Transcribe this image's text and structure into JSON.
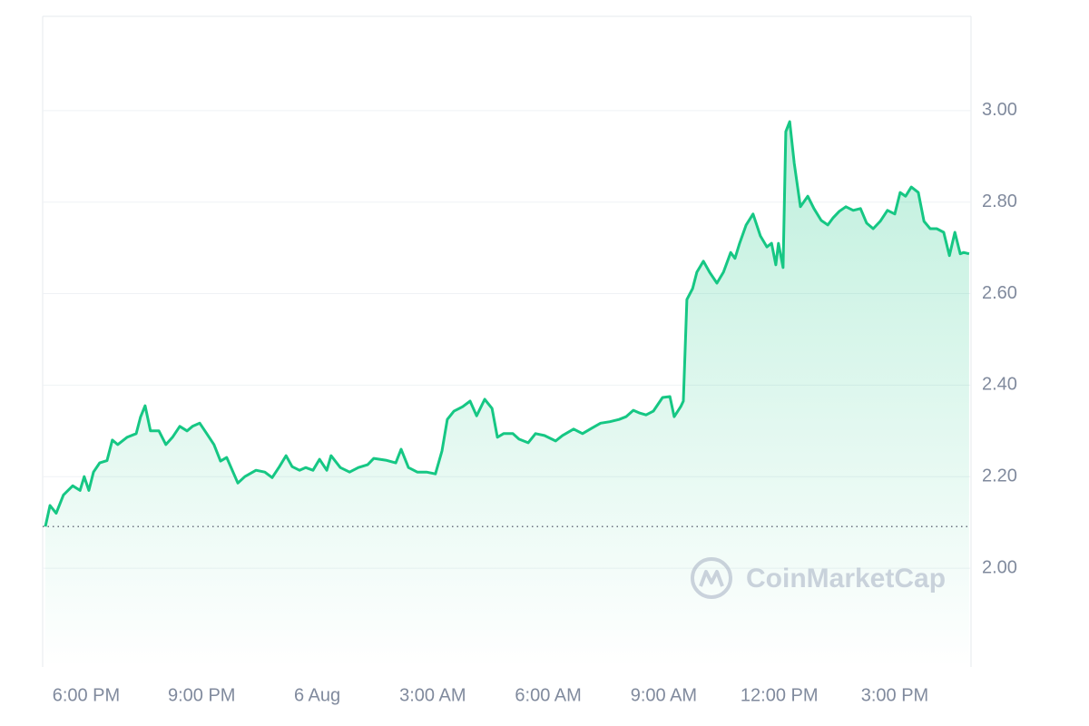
{
  "chart_data": {
    "type": "line",
    "color": "#16c784",
    "grid": true,
    "reference_line": 2.091,
    "watermark": "CoinMarketCap",
    "xlim": [
      16.87,
      40.98
    ],
    "ylim": [
      1.784,
      3.206
    ],
    "xticks": [
      {
        "value": 18,
        "label": "6:00 PM"
      },
      {
        "value": 21,
        "label": "9:00 PM"
      },
      {
        "value": 24,
        "label": "6 Aug"
      },
      {
        "value": 27,
        "label": "3:00 AM"
      },
      {
        "value": 30,
        "label": "6:00 AM"
      },
      {
        "value": 33,
        "label": "9:00 AM"
      },
      {
        "value": 36,
        "label": "12:00 PM"
      },
      {
        "value": 39,
        "label": "3:00 PM"
      }
    ],
    "yticks": [
      {
        "value": 2.0,
        "label": "2.00"
      },
      {
        "value": 2.2,
        "label": "2.20"
      },
      {
        "value": 2.4,
        "label": "2.40"
      },
      {
        "value": 2.6,
        "label": "2.60"
      },
      {
        "value": 2.8,
        "label": "2.80"
      },
      {
        "value": 3.0,
        "label": "3.00"
      }
    ],
    "x": [
      16.94,
      17.06,
      17.22,
      17.41,
      17.65,
      17.84,
      17.95,
      18.07,
      18.19,
      18.35,
      18.54,
      18.68,
      18.82,
      19.06,
      19.3,
      19.41,
      19.53,
      19.67,
      19.89,
      20.07,
      20.24,
      20.43,
      20.62,
      20.76,
      20.95,
      21.13,
      21.32,
      21.49,
      21.65,
      21.94,
      22.12,
      22.41,
      22.64,
      22.83,
      23.02,
      23.19,
      23.35,
      23.54,
      23.7,
      23.89,
      24.06,
      24.25,
      24.36,
      24.6,
      24.84,
      25.07,
      25.31,
      25.47,
      25.78,
      26.04,
      26.18,
      26.37,
      26.6,
      26.84,
      27.07,
      27.24,
      27.38,
      27.55,
      27.78,
      27.97,
      28.14,
      28.35,
      28.54,
      28.68,
      28.84,
      29.08,
      29.24,
      29.48,
      29.67,
      29.9,
      30.19,
      30.37,
      30.66,
      30.89,
      31.13,
      31.36,
      31.6,
      31.84,
      32.02,
      32.21,
      32.38,
      32.54,
      32.73,
      32.97,
      33.16,
      33.27,
      33.44,
      33.51,
      33.6,
      33.75,
      33.86,
      34.03,
      34.19,
      34.38,
      34.55,
      34.74,
      34.85,
      34.97,
      35.14,
      35.32,
      35.51,
      35.68,
      35.8,
      35.91,
      35.98,
      36.1,
      36.17,
      36.27,
      36.39,
      36.55,
      36.74,
      36.9,
      37.09,
      37.26,
      37.4,
      37.56,
      37.73,
      37.92,
      38.11,
      38.27,
      38.44,
      38.62,
      38.81,
      39.0,
      39.14,
      39.28,
      39.43,
      39.61,
      39.76,
      39.92,
      40.09,
      40.27,
      40.42,
      40.56,
      40.7,
      40.79,
      40.93
    ],
    "values": [
      2.091,
      2.137,
      2.12,
      2.16,
      2.18,
      2.17,
      2.2,
      2.17,
      2.21,
      2.23,
      2.235,
      2.28,
      2.27,
      2.286,
      2.294,
      2.33,
      2.355,
      2.3,
      2.3,
      2.27,
      2.286,
      2.31,
      2.3,
      2.31,
      2.317,
      2.294,
      2.27,
      2.234,
      2.242,
      2.186,
      2.2,
      2.214,
      2.21,
      2.198,
      2.222,
      2.246,
      2.222,
      2.214,
      2.22,
      2.214,
      2.238,
      2.214,
      2.246,
      2.22,
      2.21,
      2.22,
      2.226,
      2.24,
      2.236,
      2.23,
      2.26,
      2.22,
      2.21,
      2.21,
      2.206,
      2.256,
      2.325,
      2.343,
      2.353,
      2.365,
      2.333,
      2.369,
      2.349,
      2.286,
      2.294,
      2.294,
      2.282,
      2.274,
      2.294,
      2.29,
      2.278,
      2.29,
      2.304,
      2.294,
      2.306,
      2.317,
      2.32,
      2.325,
      2.331,
      2.345,
      2.339,
      2.335,
      2.343,
      2.373,
      2.375,
      2.331,
      2.353,
      2.365,
      2.587,
      2.611,
      2.647,
      2.671,
      2.647,
      2.623,
      2.647,
      2.69,
      2.677,
      2.71,
      2.75,
      2.774,
      2.726,
      2.702,
      2.71,
      2.663,
      2.71,
      2.657,
      2.954,
      2.976,
      2.885,
      2.79,
      2.813,
      2.786,
      2.76,
      2.75,
      2.766,
      2.78,
      2.79,
      2.782,
      2.786,
      2.754,
      2.742,
      2.758,
      2.782,
      2.774,
      2.821,
      2.813,
      2.833,
      2.821,
      2.758,
      2.742,
      2.742,
      2.734,
      2.683,
      2.734,
      2.687,
      2.69,
      2.687
    ]
  }
}
